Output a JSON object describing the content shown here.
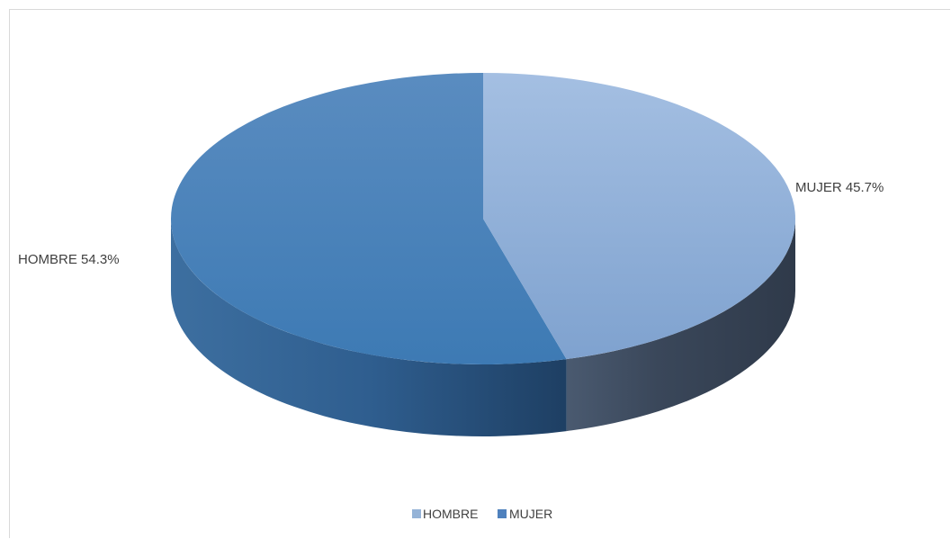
{
  "chart_data": {
    "type": "pie",
    "is_3d": true,
    "categories": [
      "HOMBRE",
      "MUJER"
    ],
    "values": [
      54.3,
      45.7
    ],
    "unit": "%",
    "data_labels": [
      "HOMBRE 54.3%",
      "MUJER 45.7%"
    ],
    "legend": {
      "placement": "bottom",
      "entries": [
        {
          "label": "HOMBRE",
          "color": "#95b3d7"
        },
        {
          "label": "MUJER",
          "color": "#4f81bd"
        }
      ]
    },
    "colors": {
      "right_slice_top": "#95b3d7",
      "left_slice_top": "#4a86c0",
      "right_slice_side": "#3a4a5e",
      "left_slice_side": "#2f5f8e"
    },
    "title": "",
    "xlabel": "",
    "ylabel": ""
  }
}
